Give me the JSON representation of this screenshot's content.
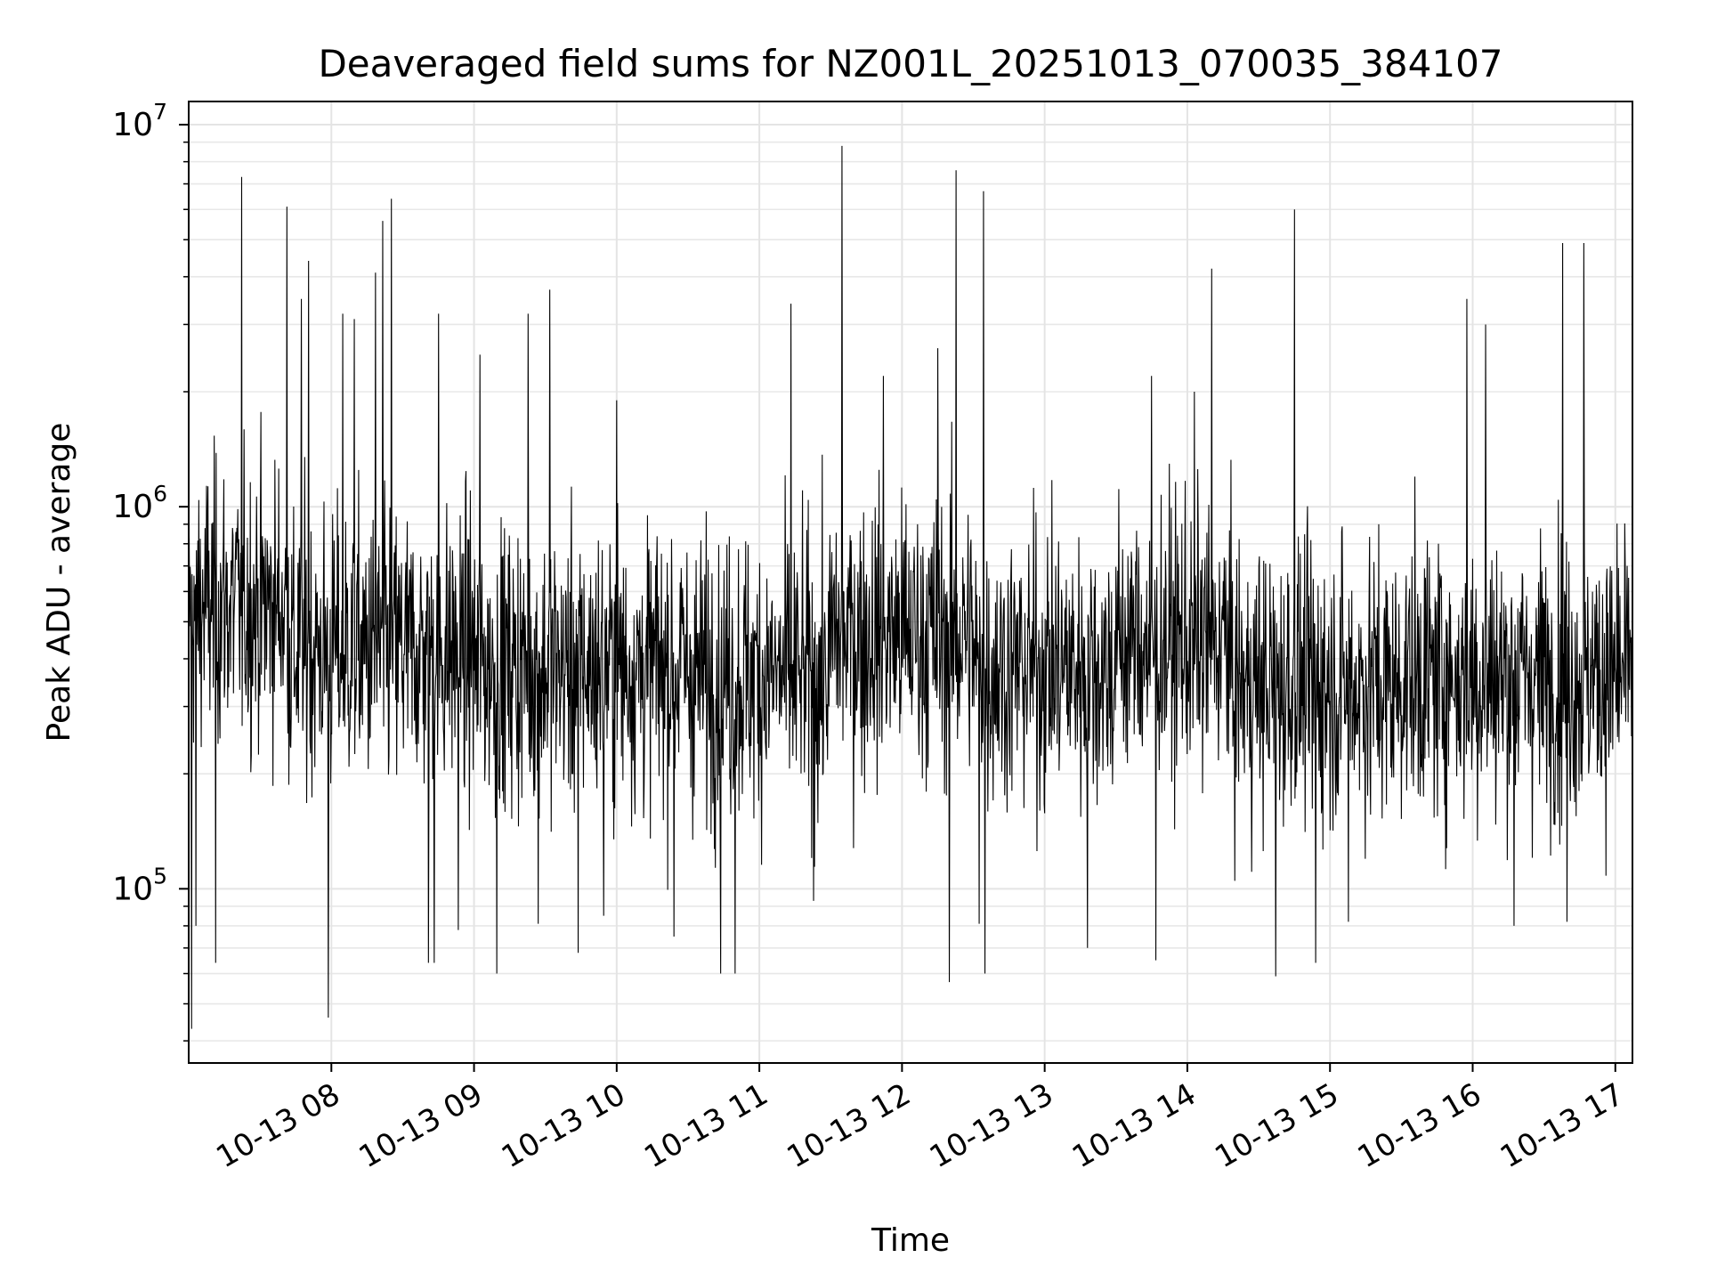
{
  "chart_data": {
    "type": "line",
    "title": "Deaveraged field sums for NZ001L_20251013_070035_384107",
    "xlabel": "Time",
    "ylabel": "Peak ADU - average",
    "yscale": "log",
    "ylim": [
      35000,
      11500000
    ],
    "xlim_hours": [
      7.0,
      17.12
    ],
    "grid": true,
    "line_color": "#000000",
    "y_ticks": [
      {
        "value": 100000,
        "mantissa": "10",
        "exponent": "5"
      },
      {
        "value": 1000000,
        "mantissa": "10",
        "exponent": "6"
      },
      {
        "value": 10000000,
        "mantissa": "10",
        "exponent": "7"
      }
    ],
    "x_ticks": [
      {
        "hour": 8,
        "label": "10-13 08"
      },
      {
        "hour": 9,
        "label": "10-13 09"
      },
      {
        "hour": 10,
        "label": "10-13 10"
      },
      {
        "hour": 11,
        "label": "10-13 11"
      },
      {
        "hour": 12,
        "label": "10-13 12"
      },
      {
        "hour": 13,
        "label": "10-13 13"
      },
      {
        "hour": 14,
        "label": "10-13 14"
      },
      {
        "hour": 15,
        "label": "10-13 15"
      },
      {
        "hour": 16,
        "label": "10-13 16"
      },
      {
        "hour": 17,
        "label": "10-13 17"
      }
    ],
    "series": [
      {
        "name": "deaveraged field sums",
        "sample_count": 3000,
        "baseline_segments": [
          {
            "start_hour": 7.0,
            "end_hour": 7.7,
            "median": 550000
          },
          {
            "start_hour": 7.7,
            "end_hour": 9.0,
            "median": 420000
          },
          {
            "start_hour": 9.0,
            "end_hour": 10.5,
            "median": 380000
          },
          {
            "start_hour": 10.5,
            "end_hour": 11.5,
            "median": 360000
          },
          {
            "start_hour": 11.5,
            "end_hour": 12.5,
            "median": 460000
          },
          {
            "start_hour": 12.5,
            "end_hour": 13.5,
            "median": 380000
          },
          {
            "start_hour": 13.5,
            "end_hour": 14.3,
            "median": 440000
          },
          {
            "start_hour": 14.3,
            "end_hour": 15.5,
            "median": 340000
          },
          {
            "start_hour": 15.5,
            "end_hour": 17.12,
            "median": 360000
          }
        ],
        "peaks": [
          {
            "hour": 7.37,
            "value": 7300000
          },
          {
            "hour": 7.69,
            "value": 6100000
          },
          {
            "hour": 7.79,
            "value": 3500000
          },
          {
            "hour": 7.84,
            "value": 4400000
          },
          {
            "hour": 8.08,
            "value": 3200000
          },
          {
            "hour": 8.16,
            "value": 3100000
          },
          {
            "hour": 8.31,
            "value": 4100000
          },
          {
            "hour": 8.36,
            "value": 5600000
          },
          {
            "hour": 8.42,
            "value": 6400000
          },
          {
            "hour": 8.75,
            "value": 3200000
          },
          {
            "hour": 9.04,
            "value": 2500000
          },
          {
            "hour": 9.38,
            "value": 3200000
          },
          {
            "hour": 9.53,
            "value": 3700000
          },
          {
            "hour": 10.0,
            "value": 1900000
          },
          {
            "hour": 11.22,
            "value": 3400000
          },
          {
            "hour": 11.58,
            "value": 8800000
          },
          {
            "hour": 11.87,
            "value": 2200000
          },
          {
            "hour": 12.25,
            "value": 2600000
          },
          {
            "hour": 12.38,
            "value": 7600000
          },
          {
            "hour": 12.57,
            "value": 6700000
          },
          {
            "hour": 13.75,
            "value": 2200000
          },
          {
            "hour": 14.05,
            "value": 2000000
          },
          {
            "hour": 14.17,
            "value": 4200000
          },
          {
            "hour": 14.75,
            "value": 6000000
          },
          {
            "hour": 15.96,
            "value": 3500000
          },
          {
            "hour": 16.09,
            "value": 3000000
          },
          {
            "hour": 16.63,
            "value": 4900000
          },
          {
            "hour": 16.78,
            "value": 4900000
          }
        ],
        "dips": [
          {
            "hour": 7.02,
            "value": 43000
          },
          {
            "hour": 7.05,
            "value": 80000
          },
          {
            "hour": 7.19,
            "value": 64000
          },
          {
            "hour": 7.98,
            "value": 46000
          },
          {
            "hour": 8.68,
            "value": 64000
          },
          {
            "hour": 8.72,
            "value": 64000
          },
          {
            "hour": 8.89,
            "value": 78000
          },
          {
            "hour": 9.16,
            "value": 60000
          },
          {
            "hour": 9.45,
            "value": 81000
          },
          {
            "hour": 9.73,
            "value": 68000
          },
          {
            "hour": 9.91,
            "value": 85000
          },
          {
            "hour": 10.4,
            "value": 75000
          },
          {
            "hour": 10.73,
            "value": 60000
          },
          {
            "hour": 10.83,
            "value": 60000
          },
          {
            "hour": 11.38,
            "value": 93000
          },
          {
            "hour": 12.33,
            "value": 57000
          },
          {
            "hour": 12.54,
            "value": 81000
          },
          {
            "hour": 12.58,
            "value": 60000
          },
          {
            "hour": 13.3,
            "value": 70000
          },
          {
            "hour": 13.78,
            "value": 65000
          },
          {
            "hour": 14.62,
            "value": 59000
          },
          {
            "hour": 14.9,
            "value": 64000
          },
          {
            "hour": 15.13,
            "value": 82000
          },
          {
            "hour": 16.29,
            "value": 80000
          },
          {
            "hour": 16.66,
            "value": 82000
          }
        ]
      }
    ]
  }
}
